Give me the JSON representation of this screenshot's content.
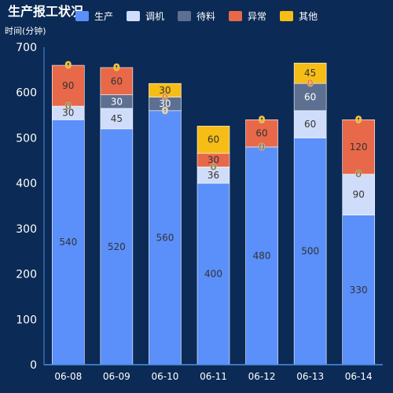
{
  "chart_data": {
    "type": "bar",
    "stacked": true,
    "title": "生产报工状况",
    "ylabel": "时间(分钟)",
    "xlabel": "",
    "categories": [
      "06-08",
      "06-09",
      "06-10",
      "06-11",
      "06-12",
      "06-13",
      "06-14"
    ],
    "ylim": [
      0,
      700
    ],
    "yticks": [
      0,
      100,
      200,
      300,
      400,
      500,
      600,
      700
    ],
    "legend_position": "top",
    "grid": false,
    "series": [
      {
        "name": "生产",
        "color": "#5b8ff9",
        "values": [
          540,
          520,
          560,
          400,
          480,
          500,
          330
        ]
      },
      {
        "name": "调机",
        "color": "#d0ddfa",
        "values": [
          30,
          45,
          0,
          36,
          0,
          60,
          90
        ]
      },
      {
        "name": "待料",
        "color": "#5d7092",
        "values": [
          0,
          30,
          30,
          0,
          0,
          60,
          0
        ]
      },
      {
        "name": "异常",
        "color": "#e8684a",
        "values": [
          90,
          60,
          0,
          30,
          60,
          0,
          120
        ]
      },
      {
        "name": "其他",
        "color": "#f6bd16",
        "values": [
          0,
          0,
          30,
          60,
          0,
          45,
          0
        ]
      }
    ],
    "colors": {
      "background": "#0b2a55",
      "axis": "#4a90e2",
      "text": "#ffffff",
      "dark_label": "#333333"
    }
  }
}
